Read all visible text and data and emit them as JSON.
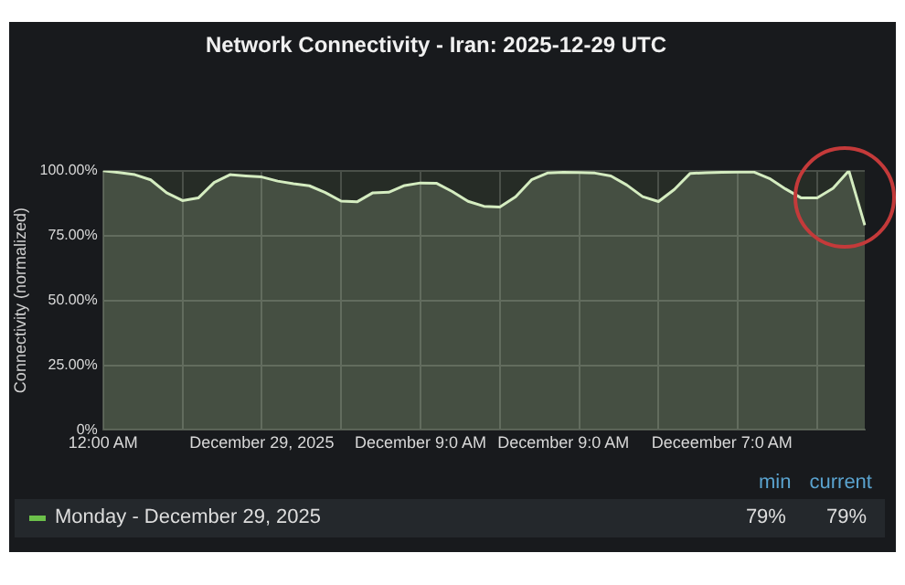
{
  "chart_data": {
    "type": "area",
    "title": "Network Connectivity - Iran: 2025-12-29 UTC",
    "ylabel": "Connectivity (normalized)",
    "categories": [
      "12:00 AM",
      null,
      null,
      null,
      null,
      null,
      null,
      null,
      null,
      null,
      "December 29, 2025",
      null,
      null,
      null,
      null,
      null,
      null,
      null,
      null,
      null,
      "December 9:0 AM",
      null,
      null,
      null,
      null,
      null,
      null,
      null,
      null,
      "December 9:0 AM",
      null,
      null,
      null,
      null,
      null,
      null,
      null,
      null,
      null,
      "Deceember 7:0 AM",
      null,
      null,
      null,
      null,
      null,
      null,
      null,
      null,
      null
    ],
    "ylim": [
      0,
      100
    ],
    "yticks": [
      {
        "value": 0,
        "label": "0%"
      },
      {
        "value": 25,
        "label": "25.00%"
      },
      {
        "value": 50,
        "label": "50.00%"
      },
      {
        "value": 75,
        "label": "75.00%"
      },
      {
        "value": 100,
        "label": "100.00%"
      }
    ],
    "grid": true,
    "legend": "bottom",
    "marker": "none",
    "line_style": "solid",
    "series": [
      {
        "name": "Monday - December 29, 2025",
        "color": "#d4ecc0",
        "values": [
          100,
          99.3,
          98.5,
          96.5,
          91.5,
          88.5,
          89.5,
          95.5,
          98.5,
          98,
          97.6,
          96,
          95,
          94.2,
          91.6,
          88.3,
          88,
          91.5,
          91.7,
          94.3,
          95.3,
          95.2,
          92,
          88.2,
          86.3,
          86,
          90,
          96.5,
          99.1,
          99.4,
          99.3,
          99.1,
          98,
          94.5,
          90,
          88.1,
          92.8,
          99,
          99.2,
          99.4,
          99.5,
          99.5,
          97,
          93,
          89.5,
          89.5,
          93.2,
          100,
          79
        ]
      }
    ],
    "annotations": [
      "min",
      "current",
      "79%",
      "79%"
    ]
  }
}
